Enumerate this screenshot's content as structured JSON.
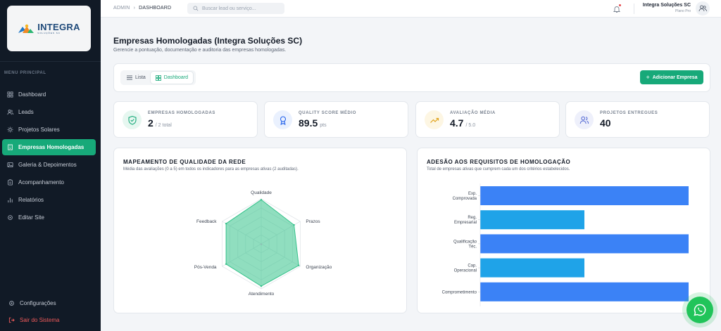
{
  "sidebar": {
    "logo_text": "INTEGRA",
    "logo_sub": "SOLUÇÕES SC",
    "section_heading": "MENU PRINCIPAL",
    "items": [
      {
        "label": "Dashboard",
        "icon": "grid-icon",
        "active": false
      },
      {
        "label": "Leads",
        "icon": "users-icon",
        "active": false
      },
      {
        "label": "Projetos Solares",
        "icon": "sun-icon",
        "active": false
      },
      {
        "label": "Empresas Homologadas",
        "icon": "building-icon",
        "active": true
      },
      {
        "label": "Galeria & Depoimentos",
        "icon": "image-icon",
        "active": false
      },
      {
        "label": "Acompanhamento",
        "icon": "clipboard-icon",
        "active": false
      },
      {
        "label": "Relatórios",
        "icon": "bar-chart-icon",
        "active": false
      },
      {
        "label": "Editar Site",
        "icon": "gear-icon",
        "active": false
      }
    ],
    "settings_label": "Configurações",
    "logout_label": "Sair do Sistema"
  },
  "topbar": {
    "crumb_root": "ADMIN",
    "crumb_sep": "›",
    "crumb_current": "DASHBOARD",
    "search_placeholder": "Buscar lead ou serviço...",
    "user_name": "Integra Soluções SC",
    "user_plan": "Plano Pro"
  },
  "page": {
    "title": "Empresas Homologadas (Integra Soluções SC)",
    "subtitle": "Gerencie a pontuação, documentação e auditoria das empresas homologadas."
  },
  "toolbar": {
    "tab_list": "Lista",
    "tab_dashboard": "Dashboard",
    "add_label": "Adicionar Empresa"
  },
  "stats": [
    {
      "label": "EMPRESAS HOMOLOGADAS",
      "value": "2",
      "suffix": "/ 2 total",
      "icon": "shield-check-icon",
      "color": "#17a979",
      "bg": "#e6f7f0"
    },
    {
      "label": "QUALITY SCORE MÉDIO",
      "value": "89.5",
      "suffix": "pts",
      "icon": "award-icon",
      "color": "#2563eb",
      "bg": "#eaf1fe"
    },
    {
      "label": "AVALIAÇÃO MÉDIA",
      "value": "4.7",
      "suffix": "/ 5.0",
      "icon": "trending-up-icon",
      "color": "#e0a21a",
      "bg": "#fdf6e3"
    },
    {
      "label": "PROJETOS ENTREGUES",
      "value": "40",
      "suffix": "",
      "icon": "users-icon",
      "color": "#5b6fd6",
      "bg": "#eef0fb"
    }
  ],
  "radar_card": {
    "title": "MAPEAMENTO DE QUALIDADE DA REDE",
    "subtitle": "Média das avaliações (0 a 5) em todos os indicadores para as empresas ativas (2 auditadas)."
  },
  "bar_card": {
    "title": "ADESÃO AOS REQUISITOS DE HOMOLOGAÇÃO",
    "subtitle": "Total de empresas ativas que cumprem cada um dos critérios estabelecidos."
  },
  "chart_data": [
    {
      "type": "radar",
      "title": "MAPEAMENTO DE QUALIDADE DA REDE",
      "axes": [
        "Qualidade",
        "Prazos",
        "Organização",
        "Atendimento",
        "Pós-Venda",
        "Feedback"
      ],
      "range": [
        0,
        5
      ],
      "series": [
        {
          "values": [
            4.9,
            4.2,
            4.8,
            4.7,
            4.5,
            4.5
          ],
          "color": "#34c28a"
        }
      ]
    },
    {
      "type": "bar",
      "orientation": "horizontal",
      "title": "ADESÃO AOS REQUISITOS DE HOMOLOGAÇÃO",
      "categories": [
        [
          "Exp.",
          "Comprovada"
        ],
        [
          "Reg.",
          "Empresarial"
        ],
        [
          "Qualificação",
          "Téc."
        ],
        [
          "Cap.",
          "Operacional"
        ],
        [
          "Comprometimento"
        ]
      ],
      "values": [
        2,
        1,
        2,
        1,
        2
      ],
      "xlim": [
        0,
        2
      ],
      "colors": [
        "#3b82f6",
        "#1fa3e8",
        "#3b82f6",
        "#1fa3e8",
        "#3b82f6"
      ]
    }
  ]
}
